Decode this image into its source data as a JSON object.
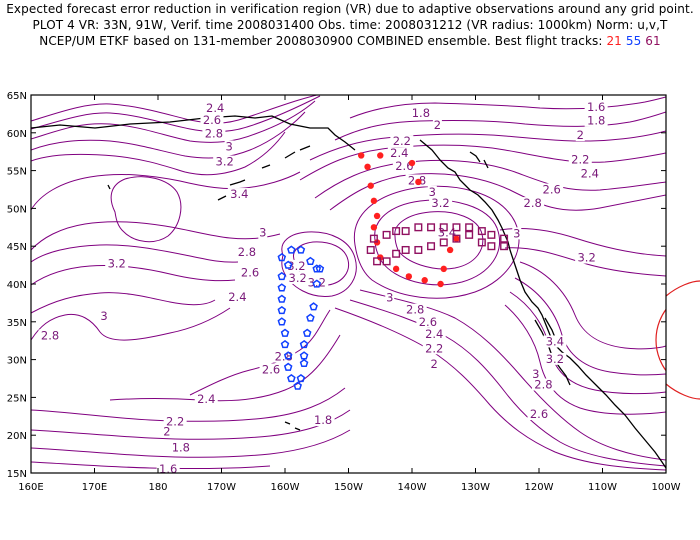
{
  "header": {
    "line1": "Expected forecast error reduction in verification region (VR) due to adaptive observations around any grid point.",
    "line2": "PLOT 4 VR: 33N, 91W, Verif. time 2008031400 Obs. time: 2008031212 (VR radius: 1000km) Norm: u,v,T",
    "line3_prefix": "NCEP/UM ETKF based on 131-member 2008030900 COMBINED ensemble.  Best flight tracks: ",
    "track_a": "21",
    "track_b": "55",
    "track_c": "61"
  },
  "colors": {
    "contour": "#800080",
    "track_a": "#ff2020",
    "track_b": "#1040ff",
    "track_c": "#901060",
    "coast": "#000000",
    "vr_circle": "#e02020"
  },
  "axes": {
    "lon_labels": [
      "160E",
      "170E",
      "180",
      "170W",
      "160W",
      "150W",
      "140W",
      "130W",
      "120W",
      "110W",
      "100W"
    ],
    "lat_labels": [
      "15N",
      "20N",
      "25N",
      "30N",
      "35N",
      "40N",
      "45N",
      "50N",
      "55N",
      "60N",
      "65N"
    ]
  },
  "contour_labels": [
    {
      "text": "2.4",
      "lon": -171,
      "lat": 63.3
    },
    {
      "text": "2.6",
      "lon": -171.5,
      "lat": 61.7
    },
    {
      "text": "2.8",
      "lon": -171.2,
      "lat": 59.9
    },
    {
      "text": "3",
      "lon": -168.8,
      "lat": 58.2
    },
    {
      "text": "3.2",
      "lon": -169.5,
      "lat": 56.2
    },
    {
      "text": "3.4",
      "lon": -167.2,
      "lat": 51.9
    },
    {
      "text": "1.8",
      "lon": -138.6,
      "lat": 62.6
    },
    {
      "text": "2",
      "lon": -136,
      "lat": 61
    },
    {
      "text": "2.2",
      "lon": -141.6,
      "lat": 58.9
    },
    {
      "text": "2.4",
      "lon": -142,
      "lat": 57.3
    },
    {
      "text": "2.6",
      "lon": -141.2,
      "lat": 55.6
    },
    {
      "text": "2.8",
      "lon": -139.2,
      "lat": 53.7
    },
    {
      "text": "3",
      "lon": -136.8,
      "lat": 52.2
    },
    {
      "text": "3.2",
      "lon": -135.5,
      "lat": 50.7
    },
    {
      "text": "3.4",
      "lon": -134.5,
      "lat": 46.8
    },
    {
      "text": "1.6",
      "lon": -111,
      "lat": 63.4
    },
    {
      "text": "1.8",
      "lon": -111,
      "lat": 61.6
    },
    {
      "text": "2",
      "lon": -113.5,
      "lat": 59.7
    },
    {
      "text": "2.2",
      "lon": -113.5,
      "lat": 56.5
    },
    {
      "text": "2.4",
      "lon": -112,
      "lat": 54.6
    },
    {
      "text": "2.6",
      "lon": -118,
      "lat": 52.5
    },
    {
      "text": "2.8",
      "lon": -121,
      "lat": 50.7
    },
    {
      "text": "3",
      "lon": -123.5,
      "lat": 46.7
    },
    {
      "text": "3.2",
      "lon": -112.5,
      "lat": 43.5
    },
    {
      "text": "3",
      "lon": -163.5,
      "lat": 46.8
    },
    {
      "text": "2.8",
      "lon": -166,
      "lat": 44.2
    },
    {
      "text": "2.6",
      "lon": -165.5,
      "lat": 41.5
    },
    {
      "text": "2.4",
      "lon": -167.5,
      "lat": 38.3
    },
    {
      "text": "3.2",
      "lon": -158,
      "lat": 40.8
    },
    {
      "text": "3.2",
      "lon": -158.2,
      "lat": 42.4
    },
    {
      "text": "3.2",
      "lon": -155,
      "lat": 40.2
    },
    {
      "text": "3.2",
      "lon": -186.5,
      "lat": 42.7
    },
    {
      "text": "3",
      "lon": -188.5,
      "lat": 35.8
    },
    {
      "text": "2.8",
      "lon": -197,
      "lat": 33.2
    },
    {
      "text": "3",
      "lon": -143.5,
      "lat": 38.2
    },
    {
      "text": "2.8",
      "lon": -139.5,
      "lat": 36.6
    },
    {
      "text": "2.6",
      "lon": -137.5,
      "lat": 35
    },
    {
      "text": "2.4",
      "lon": -136.5,
      "lat": 33.4
    },
    {
      "text": "2.2",
      "lon": -136.5,
      "lat": 31.5
    },
    {
      "text": "2",
      "lon": -136.5,
      "lat": 29.4
    },
    {
      "text": "2.6",
      "lon": -162.2,
      "lat": 28.7
    },
    {
      "text": "2.8",
      "lon": -160.2,
      "lat": 30.4
    },
    {
      "text": "2.4",
      "lon": -172.4,
      "lat": 24.8
    },
    {
      "text": "2.2",
      "lon": -177.3,
      "lat": 21.8
    },
    {
      "text": "2",
      "lon": -178.6,
      "lat": 20.5
    },
    {
      "text": "1.8",
      "lon": -176.4,
      "lat": 18.4
    },
    {
      "text": "1.6",
      "lon": -178.4,
      "lat": 15.5
    },
    {
      "text": "1.8",
      "lon": -154,
      "lat": 22
    },
    {
      "text": "3.4",
      "lon": -117.5,
      "lat": 32.4
    },
    {
      "text": "3.2",
      "lon": -117.5,
      "lat": 30.1
    },
    {
      "text": "3",
      "lon": -120.5,
      "lat": 28.1
    },
    {
      "text": "2.8",
      "lon": -119.3,
      "lat": 26.7
    },
    {
      "text": "2.6",
      "lon": -120,
      "lat": 22.8
    }
  ],
  "tracks": {
    "red": [
      [
        -148,
        57
      ],
      [
        -145,
        57
      ],
      [
        -147,
        55.5
      ],
      [
        -146.5,
        53
      ],
      [
        -146,
        51
      ],
      [
        -145.5,
        49
      ],
      [
        -146,
        47.5
      ],
      [
        -145.5,
        45.5
      ],
      [
        -145,
        43.5
      ],
      [
        -142.5,
        42
      ],
      [
        -140.5,
        41
      ],
      [
        -138,
        40.5
      ],
      [
        -135.5,
        40
      ],
      [
        -135,
        42
      ],
      [
        -134,
        44.5
      ],
      [
        -133,
        46
      ],
      [
        -140,
        56
      ],
      [
        -139,
        53.5
      ]
    ],
    "blue": [
      [
        -157.5,
        44.5
      ],
      [
        -159,
        44.5
      ],
      [
        -160.5,
        43.5
      ],
      [
        -159.5,
        42.5
      ],
      [
        -160.5,
        41
      ],
      [
        -160.5,
        39.5
      ],
      [
        -160.5,
        38
      ],
      [
        -160.5,
        36.5
      ],
      [
        -160.5,
        35
      ],
      [
        -160,
        33.5
      ],
      [
        -160,
        32
      ],
      [
        -159.5,
        30.5
      ],
      [
        -159.5,
        29
      ],
      [
        -159,
        27.5
      ],
      [
        -158,
        26.5
      ],
      [
        -157.5,
        27.5
      ],
      [
        -157,
        29.5
      ],
      [
        -157,
        30.5
      ],
      [
        -157,
        32
      ],
      [
        -156.5,
        33.5
      ],
      [
        -156,
        35.5
      ],
      [
        -155.5,
        37
      ],
      [
        -155,
        40
      ],
      [
        -155,
        42
      ],
      [
        -156,
        43
      ],
      [
        -154.5,
        42
      ]
    ],
    "maroon": [
      [
        -146.5,
        44.5
      ],
      [
        -146,
        46
      ],
      [
        -145.5,
        43
      ],
      [
        -144,
        46.5
      ],
      [
        -144,
        43
      ],
      [
        -142.5,
        47
      ],
      [
        -142.5,
        44
      ],
      [
        -141,
        47
      ],
      [
        -141,
        44.5
      ],
      [
        -139,
        47.5
      ],
      [
        -139,
        44.5
      ],
      [
        -137,
        47.5
      ],
      [
        -137,
        45
      ],
      [
        -135,
        47.5
      ],
      [
        -135,
        45.5
      ],
      [
        -133,
        47.5
      ],
      [
        -133,
        46
      ],
      [
        -131,
        47.5
      ],
      [
        -131,
        46.5
      ],
      [
        -129,
        47
      ],
      [
        -129,
        45.5
      ],
      [
        -127.5,
        46.5
      ],
      [
        -127.5,
        45
      ],
      [
        -125.5,
        46
      ],
      [
        -125.5,
        45
      ]
    ]
  }
}
